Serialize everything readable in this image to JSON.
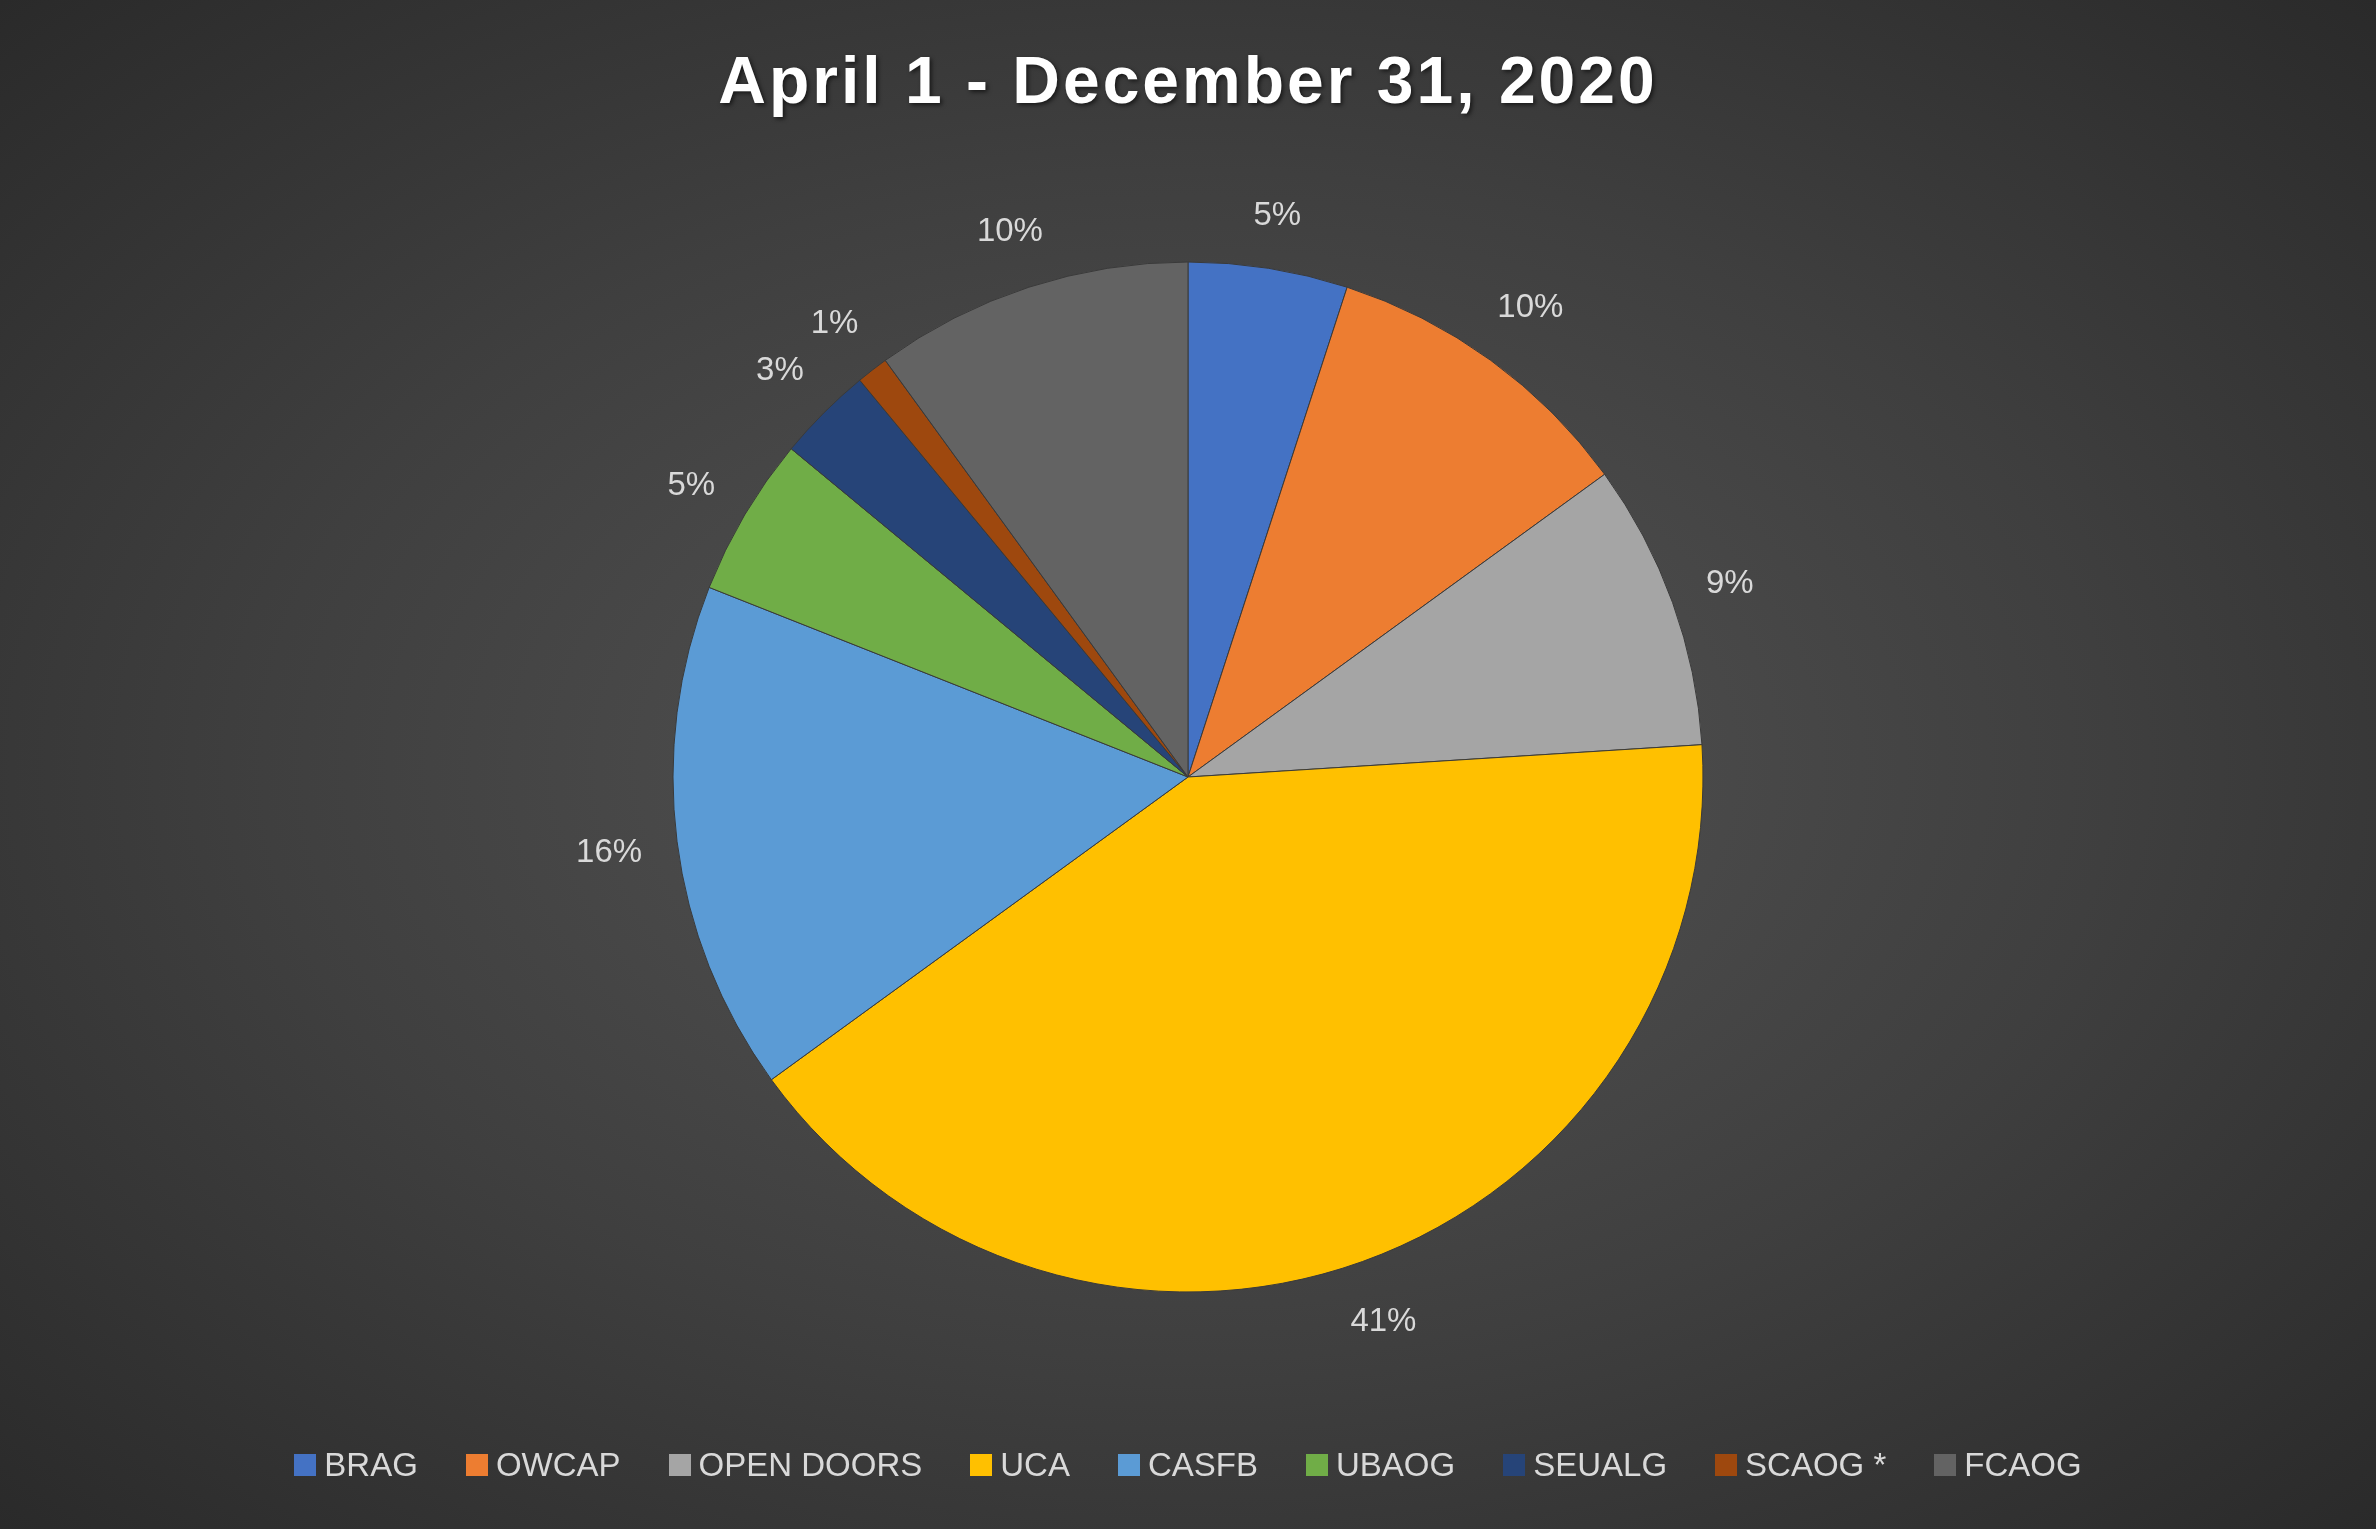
{
  "chart_data": {
    "type": "pie",
    "title": "April 1 - December 31, 2020",
    "categories": [
      "BRAG",
      "OWCAP",
      "OPEN DOORS",
      "UCA",
      "CASFB",
      "UBAOG",
      "SEUALG",
      "SCAOG *",
      "FCAOG"
    ],
    "values": [
      5,
      10,
      9,
      41,
      16,
      5,
      3,
      1,
      10
    ],
    "value_labels": [
      "5%",
      "10%",
      "9%",
      "41%",
      "16%",
      "5%",
      "3%",
      "1%",
      "10%"
    ],
    "colors": [
      "#4472c4",
      "#ed7d31",
      "#a5a5a5",
      "#ffc000",
      "#5b9bd5",
      "#70ad47",
      "#264478",
      "#9e480e",
      "#636363"
    ],
    "legend": "bottom"
  }
}
